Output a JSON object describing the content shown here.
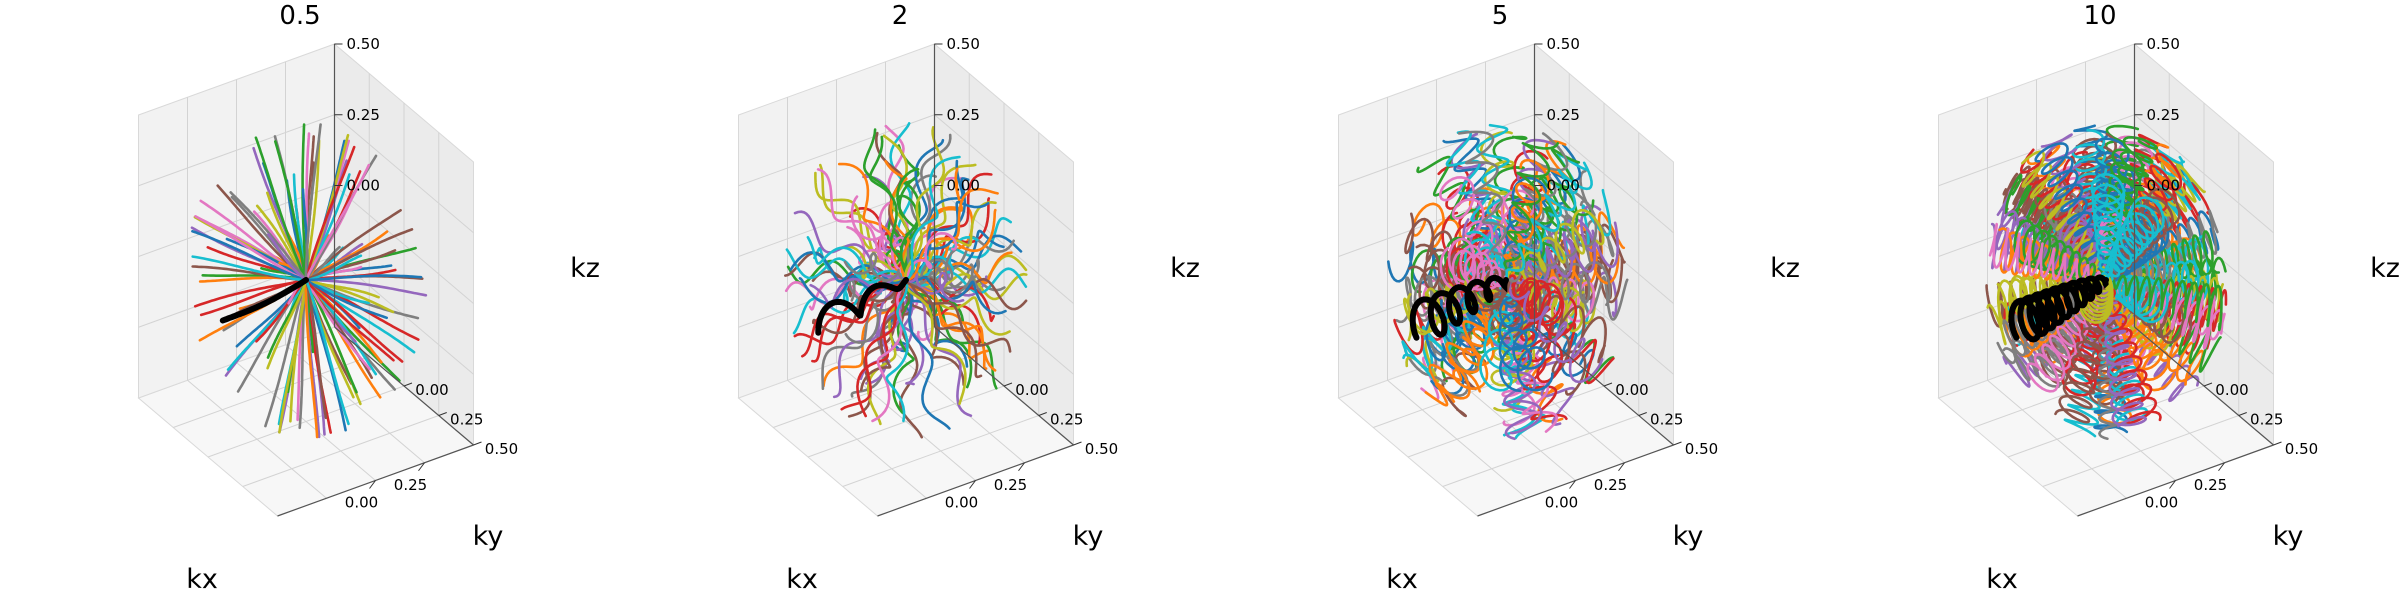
{
  "chart_data": {
    "type": "line",
    "subtype": "3d-trajectories",
    "panels": [
      {
        "title": "0.5",
        "param": 0.5
      },
      {
        "title": "2",
        "param": 2
      },
      {
        "title": "5",
        "param": 5
      },
      {
        "title": "10",
        "param": 10
      }
    ],
    "axes": {
      "xlabel": "kx",
      "ylabel": "ky",
      "zlabel": "kz",
      "x_ticks": [
        "0.00",
        "0.25"
      ],
      "y_ticks": [
        "0.00",
        "0.25",
        "0.50"
      ],
      "z_ticks": [
        "0.00",
        "0.25",
        "0.50"
      ],
      "xlim": [
        -0.5,
        0.5
      ],
      "ylim": [
        -0.5,
        0.5
      ],
      "zlim": [
        -0.5,
        0.5
      ]
    },
    "trajectory_radius": 0.5,
    "trajectories_per_panel": 120,
    "highlight_color": "#000000",
    "series_colors": [
      "#1f77b4",
      "#ff7f0e",
      "#2ca02c",
      "#d62728",
      "#9467bd",
      "#8c564b",
      "#e377c2",
      "#7f7f7f",
      "#bcbd22",
      "#17becf"
    ],
    "pane_colors": {
      "back": "#f2f2f2",
      "side": "#ebebeb",
      "floor": "#f7f7f7"
    },
    "grid": true
  }
}
